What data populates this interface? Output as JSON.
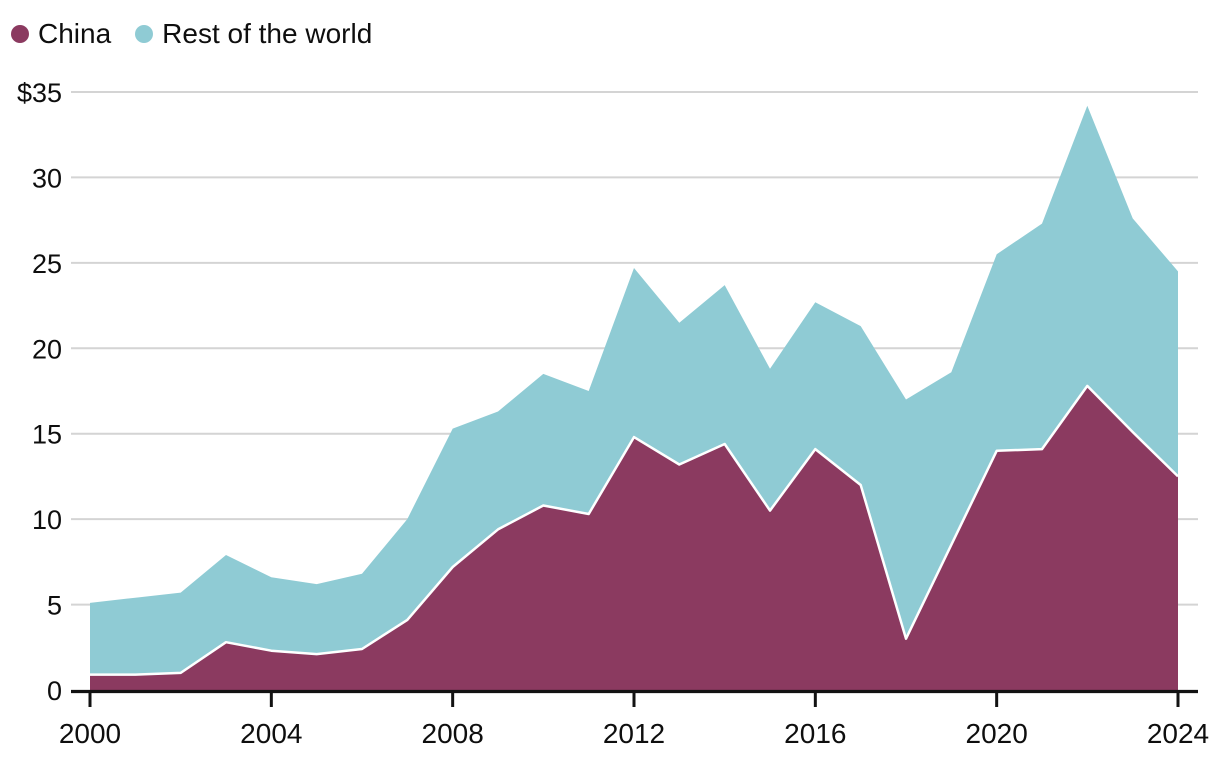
{
  "legend": {
    "items": [
      {
        "label": "China",
        "color": "#8b3a60"
      },
      {
        "label": "Rest of the world",
        "color": "#8fcbd4"
      }
    ]
  },
  "chart_data": {
    "type": "area",
    "stacked": true,
    "title": "",
    "xlabel": "",
    "ylabel": "",
    "currency_prefix": "$",
    "grid": true,
    "legend_position": "top-left",
    "x": [
      2000,
      2001,
      2002,
      2003,
      2004,
      2005,
      2006,
      2007,
      2008,
      2009,
      2010,
      2011,
      2012,
      2013,
      2014,
      2015,
      2016,
      2017,
      2018,
      2019,
      2020,
      2021,
      2022,
      2023,
      2024
    ],
    "series": [
      {
        "name": "China",
        "color": "#8b3a60",
        "values": [
          0.9,
          0.9,
          1.0,
          2.8,
          2.3,
          2.1,
          2.4,
          4.1,
          7.2,
          9.4,
          10.8,
          10.3,
          14.8,
          13.2,
          14.4,
          10.5,
          14.1,
          12.0,
          3.0,
          8.5,
          14.0,
          14.1,
          17.8,
          15.1,
          12.5
        ]
      },
      {
        "name": "Rest of the world",
        "color": "#8fcbd4",
        "values": [
          4.2,
          4.5,
          4.7,
          5.1,
          4.3,
          4.1,
          4.4,
          5.9,
          8.1,
          6.9,
          7.7,
          7.2,
          9.9,
          8.3,
          9.3,
          8.3,
          8.6,
          9.3,
          14.0,
          10.1,
          11.5,
          13.2,
          16.4,
          12.5,
          12.0
        ]
      }
    ],
    "totals": [
      5.1,
      5.4,
      5.7,
      7.9,
      6.6,
      6.2,
      6.8,
      10.0,
      15.3,
      16.3,
      18.5,
      17.5,
      24.7,
      21.5,
      23.7,
      18.8,
      22.7,
      21.3,
      17.0,
      18.6,
      25.5,
      27.3,
      34.2,
      27.6,
      24.5
    ],
    "xlim": [
      2000,
      2024
    ],
    "ylim": [
      0,
      35
    ],
    "xticks": [
      {
        "label": "2000",
        "value": 2000
      },
      {
        "label": "2004",
        "value": 2004
      },
      {
        "label": "2008",
        "value": 2008
      },
      {
        "label": "2012",
        "value": 2012
      },
      {
        "label": "2016",
        "value": 2016
      },
      {
        "label": "2020",
        "value": 2020
      },
      {
        "label": "2024",
        "value": 2024
      }
    ],
    "yticks": [
      {
        "label": "$35",
        "value": 35
      },
      {
        "label": "30",
        "value": 30
      },
      {
        "label": "25",
        "value": 25
      },
      {
        "label": "20",
        "value": 20
      },
      {
        "label": "15",
        "value": 15
      },
      {
        "label": "10",
        "value": 10
      },
      {
        "label": "5",
        "value": 5
      },
      {
        "label": "0",
        "value": 0
      }
    ],
    "colors": {
      "gridline": "#d4d4d4",
      "axis": "#121212",
      "tick_text": "#0e0e0e",
      "series_divider": "#ffffff"
    }
  }
}
